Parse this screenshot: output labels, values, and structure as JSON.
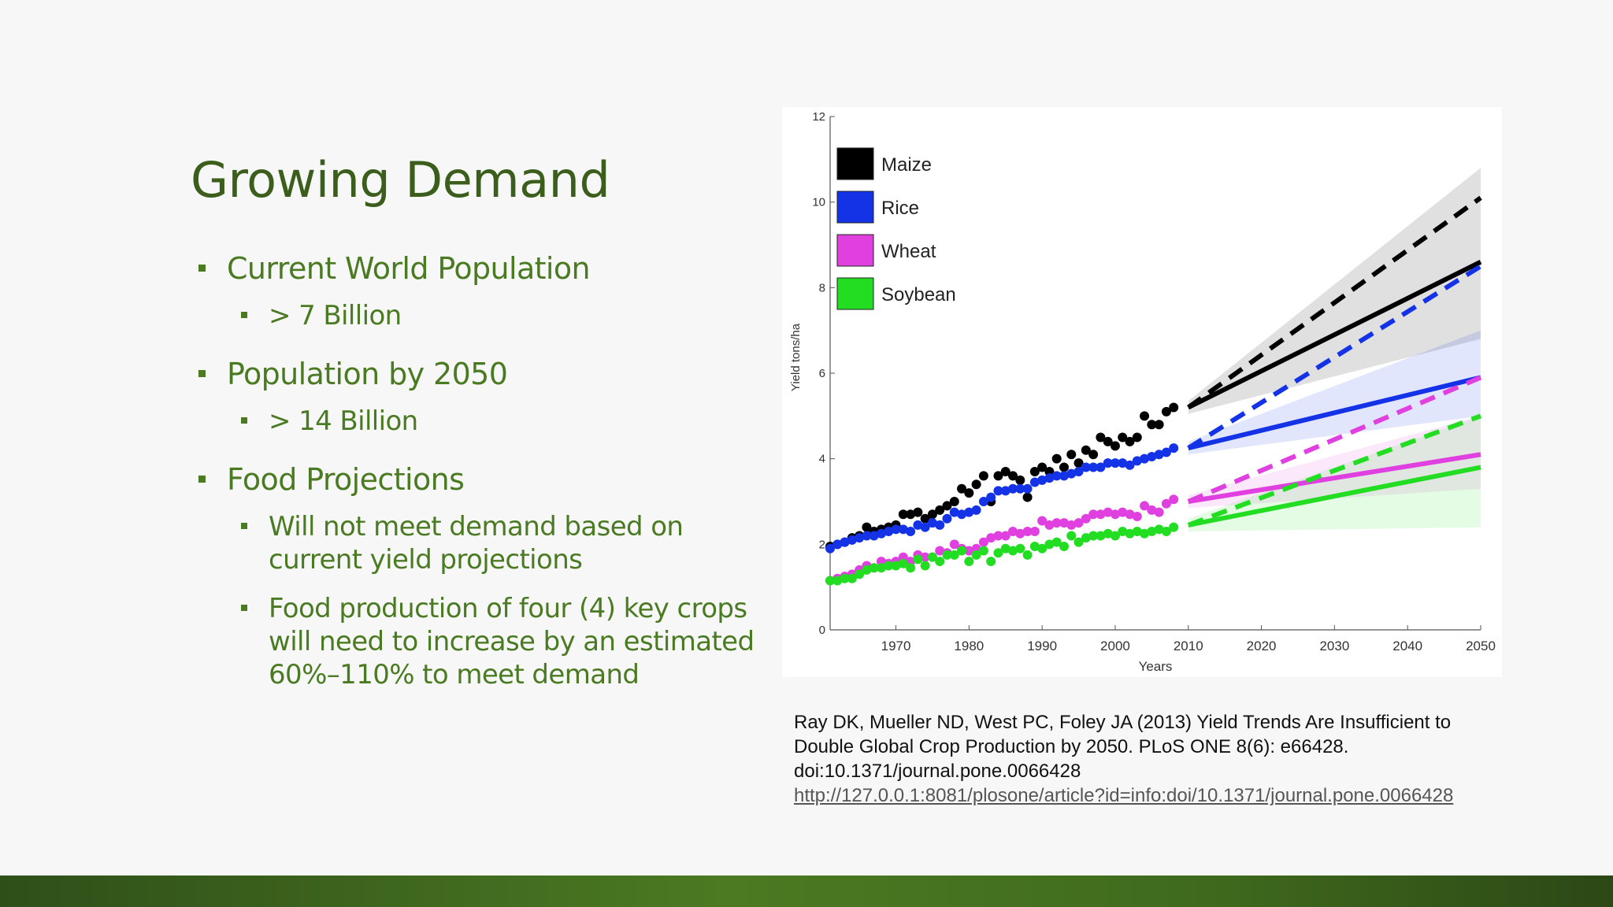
{
  "slide": {
    "title": "Growing Demand",
    "bullets": [
      {
        "text": "Current World Population",
        "sub": [
          "> 7 Billion"
        ]
      },
      {
        "text": "Population by 2050",
        "sub": [
          "> 14 Billion"
        ]
      },
      {
        "text": "Food Projections",
        "sub": [
          "Will not meet demand based on current yield projections",
          "Food production of four (4) key crops will need to increase by an estimated 60%–110% to meet demand"
        ]
      }
    ]
  },
  "citation": {
    "text": "Ray DK, Mueller ND, West PC, Foley JA (2013) Yield Trends Are Insufficient to Double Global Crop Production by 2050. PLoS ONE 8(6): e66428. doi:10.1371/journal.pone.0066428",
    "link": "http://127.0.0.1:8081/plosone/article?id=info:doi/10.1371/journal.pone.0066428"
  },
  "colors": {
    "accent": "#4a7a21",
    "title": "#3b5e1c",
    "footer": "#3f6a1d"
  },
  "chart_data": {
    "type": "scatter",
    "title": "",
    "xlabel": "Years",
    "ylabel": "Yield tons/ha",
    "xlim": [
      1961,
      2050
    ],
    "ylim": [
      0,
      12
    ],
    "xticks": [
      1970,
      1980,
      1990,
      2000,
      2010,
      2020,
      2030,
      2040,
      2050
    ],
    "yticks": [
      0,
      2,
      4,
      6,
      8,
      10,
      12
    ],
    "grid": false,
    "legend_position": "top-left",
    "series": [
      {
        "name": "Maize",
        "color": "#000000",
        "observed": {
          "x": [
            1961,
            1962,
            1963,
            1964,
            1965,
            1966,
            1967,
            1968,
            1969,
            1970,
            1971,
            1972,
            1973,
            1974,
            1975,
            1976,
            1977,
            1978,
            1979,
            1980,
            1981,
            1982,
            1983,
            1984,
            1985,
            1986,
            1987,
            1988,
            1989,
            1990,
            1991,
            1992,
            1993,
            1994,
            1995,
            1996,
            1997,
            1998,
            1999,
            2000,
            2001,
            2002,
            2003,
            2004,
            2005,
            2006,
            2007,
            2008
          ],
          "y": [
            1.95,
            2.0,
            2.05,
            2.15,
            2.2,
            2.4,
            2.3,
            2.35,
            2.4,
            2.45,
            2.7,
            2.7,
            2.75,
            2.6,
            2.7,
            2.8,
            2.9,
            3.0,
            3.3,
            3.2,
            3.4,
            3.6,
            3.0,
            3.6,
            3.7,
            3.6,
            3.5,
            3.1,
            3.7,
            3.8,
            3.7,
            4.0,
            3.8,
            4.1,
            3.9,
            4.2,
            4.1,
            4.5,
            4.4,
            4.3,
            4.5,
            4.4,
            4.5,
            5.0,
            4.8,
            4.8,
            5.1,
            5.2
          ]
        },
        "projection": {
          "trend_2010": 5.2,
          "trend_2050": 8.6,
          "required_2050": 10.1,
          "band_2050": [
            6.8,
            10.8
          ]
        }
      },
      {
        "name": "Rice",
        "color": "#1432e6",
        "observed": {
          "x": [
            1961,
            1962,
            1963,
            1964,
            1965,
            1966,
            1967,
            1968,
            1969,
            1970,
            1971,
            1972,
            1973,
            1974,
            1975,
            1976,
            1977,
            1978,
            1979,
            1980,
            1981,
            1982,
            1983,
            1984,
            1985,
            1986,
            1987,
            1988,
            1989,
            1990,
            1991,
            1992,
            1993,
            1994,
            1995,
            1996,
            1997,
            1998,
            1999,
            2000,
            2001,
            2002,
            2003,
            2004,
            2005,
            2006,
            2007,
            2008
          ],
          "y": [
            1.9,
            2.0,
            2.05,
            2.1,
            2.15,
            2.2,
            2.2,
            2.25,
            2.3,
            2.35,
            2.35,
            2.3,
            2.45,
            2.4,
            2.5,
            2.45,
            2.6,
            2.75,
            2.7,
            2.75,
            2.8,
            3.0,
            3.1,
            3.25,
            3.25,
            3.3,
            3.3,
            3.3,
            3.45,
            3.5,
            3.55,
            3.6,
            3.6,
            3.65,
            3.7,
            3.8,
            3.8,
            3.8,
            3.9,
            3.9,
            3.9,
            3.85,
            3.95,
            4.0,
            4.05,
            4.1,
            4.15,
            4.25
          ]
        },
        "projection": {
          "trend_2010": 4.25,
          "trend_2050": 5.9,
          "required_2050": 8.5,
          "band_2050": [
            5.0,
            7.0
          ]
        }
      },
      {
        "name": "Wheat",
        "color": "#e040e0",
        "observed": {
          "x": [
            1961,
            1962,
            1963,
            1964,
            1965,
            1966,
            1967,
            1968,
            1969,
            1970,
            1971,
            1972,
            1973,
            1974,
            1975,
            1976,
            1977,
            1978,
            1979,
            1980,
            1981,
            1982,
            1983,
            1984,
            1985,
            1986,
            1987,
            1988,
            1989,
            1990,
            1991,
            1992,
            1993,
            1994,
            1995,
            1996,
            1997,
            1998,
            1999,
            2000,
            2001,
            2002,
            2003,
            2004,
            2005,
            2006,
            2007,
            2008
          ],
          "y": [
            1.15,
            1.2,
            1.25,
            1.3,
            1.4,
            1.5,
            1.45,
            1.6,
            1.55,
            1.6,
            1.7,
            1.6,
            1.75,
            1.7,
            1.7,
            1.85,
            1.8,
            2.0,
            1.9,
            1.85,
            1.9,
            2.05,
            2.15,
            2.2,
            2.2,
            2.3,
            2.25,
            2.3,
            2.3,
            2.55,
            2.45,
            2.5,
            2.5,
            2.45,
            2.5,
            2.6,
            2.7,
            2.7,
            2.75,
            2.7,
            2.75,
            2.7,
            2.65,
            2.9,
            2.8,
            2.75,
            2.95,
            3.05
          ]
        },
        "projection": {
          "trend_2010": 3.0,
          "trend_2050": 4.1,
          "required_2050": 5.9,
          "band_2050": [
            3.3,
            5.0
          ]
        }
      },
      {
        "name": "Soybean",
        "color": "#22dd22",
        "observed": {
          "x": [
            1961,
            1962,
            1963,
            1964,
            1965,
            1966,
            1967,
            1968,
            1969,
            1970,
            1971,
            1972,
            1973,
            1974,
            1975,
            1976,
            1977,
            1978,
            1979,
            1980,
            1981,
            1982,
            1983,
            1984,
            1985,
            1986,
            1987,
            1988,
            1989,
            1990,
            1991,
            1992,
            1993,
            1994,
            1995,
            1996,
            1997,
            1998,
            1999,
            2000,
            2001,
            2002,
            2003,
            2004,
            2005,
            2006,
            2007,
            2008
          ],
          "y": [
            1.15,
            1.15,
            1.2,
            1.2,
            1.3,
            1.4,
            1.45,
            1.45,
            1.5,
            1.5,
            1.55,
            1.45,
            1.65,
            1.5,
            1.7,
            1.6,
            1.75,
            1.75,
            1.85,
            1.6,
            1.75,
            1.85,
            1.6,
            1.8,
            1.9,
            1.85,
            1.9,
            1.75,
            1.95,
            1.9,
            2.0,
            2.05,
            1.95,
            2.2,
            2.05,
            2.15,
            2.2,
            2.2,
            2.25,
            2.2,
            2.3,
            2.25,
            2.3,
            2.25,
            2.3,
            2.35,
            2.3,
            2.4
          ]
        },
        "projection": {
          "trend_2010": 2.45,
          "trend_2050": 3.8,
          "required_2050": 5.0,
          "band_2050": [
            2.4,
            5.0
          ]
        }
      }
    ]
  }
}
